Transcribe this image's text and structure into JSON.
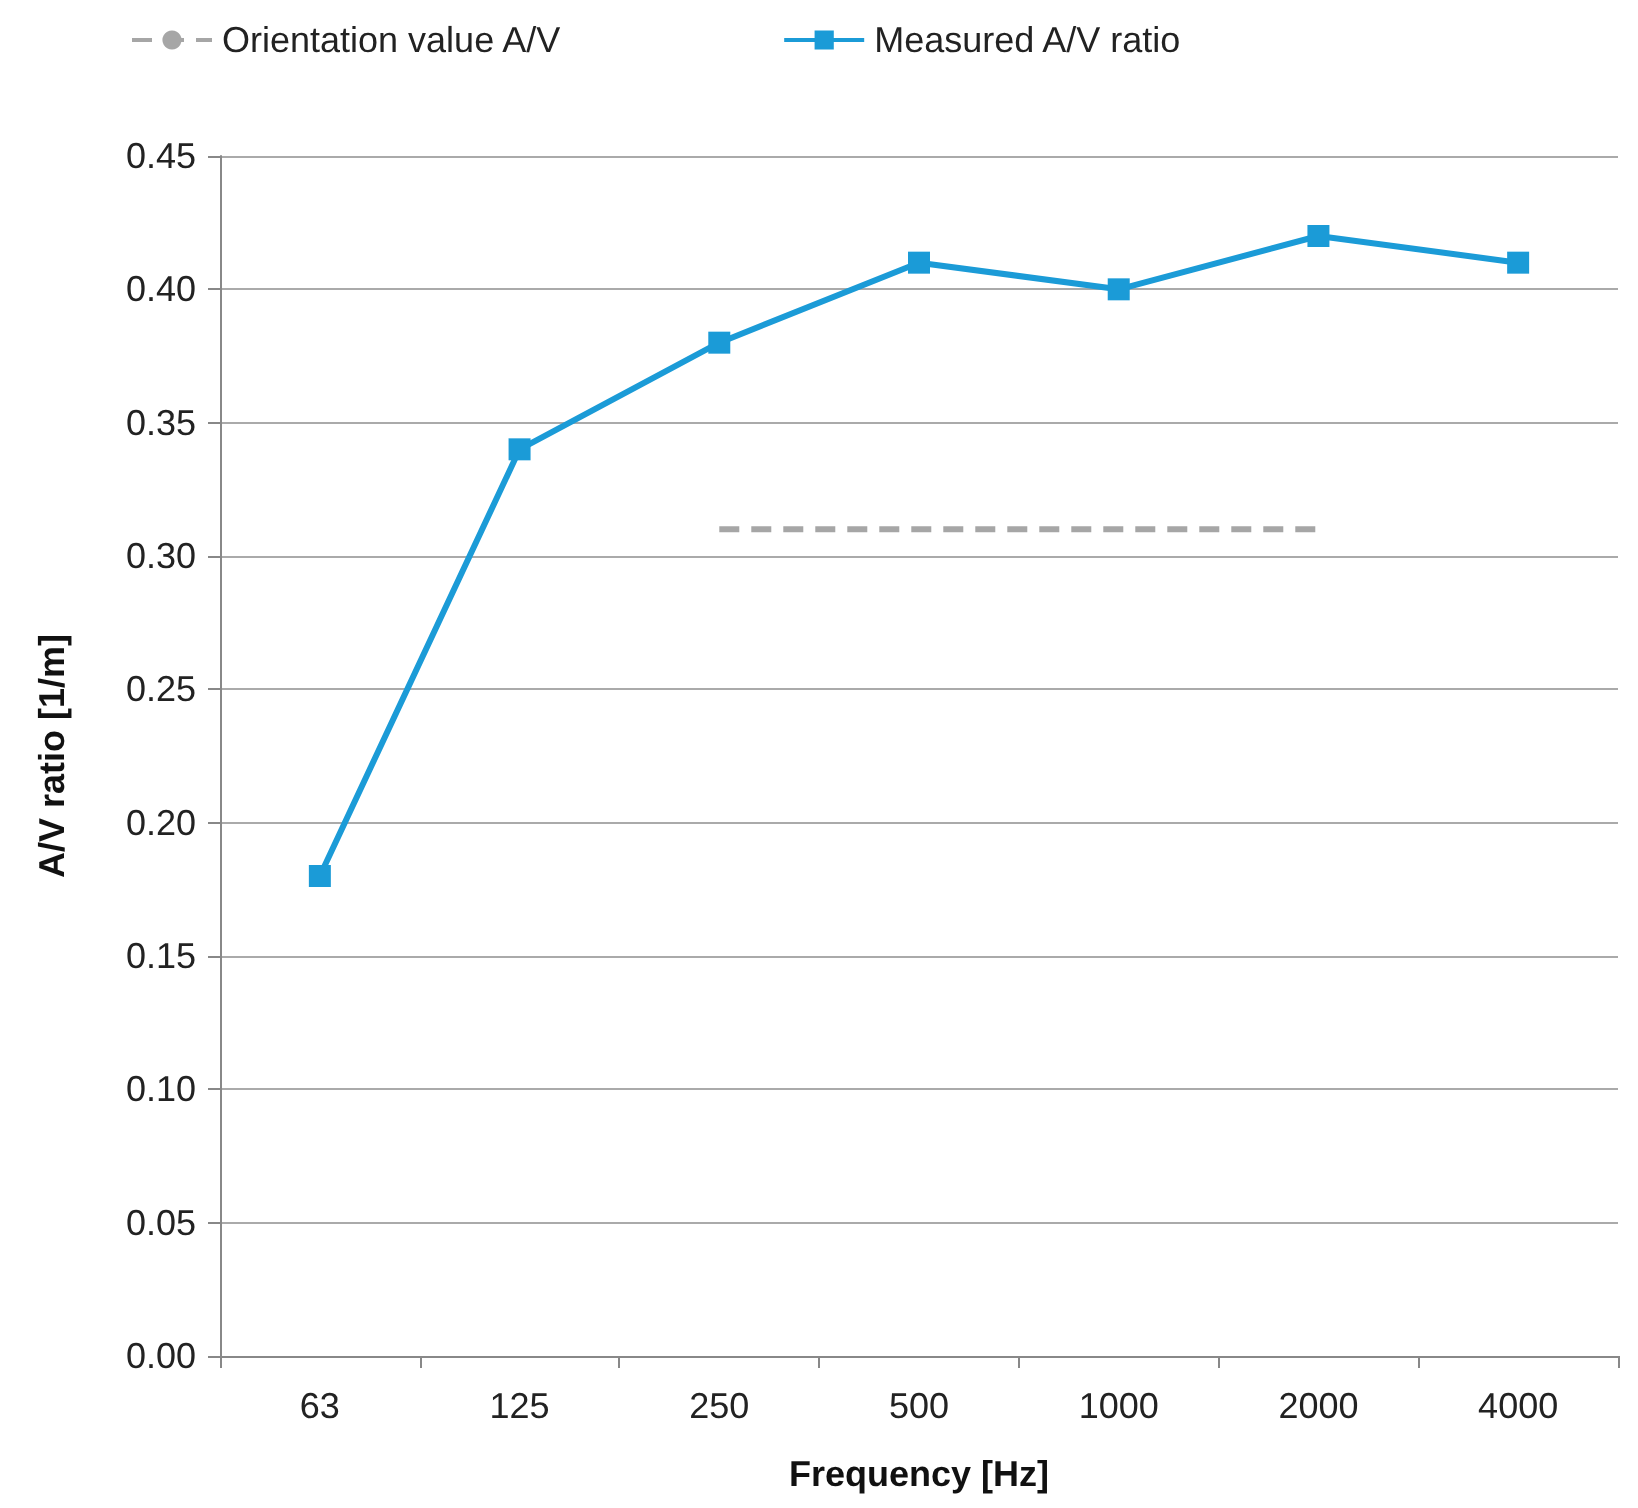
{
  "chart_data": {
    "type": "line",
    "xlabel": "Frequency [Hz]",
    "ylabel": "A/V ratio [1/m]",
    "categories": [
      "63",
      "125",
      "250",
      "500",
      "1000",
      "2000",
      "4000"
    ],
    "series": [
      {
        "name": "Orientation value A/V",
        "color": "#a6a6a6",
        "values": [
          null,
          null,
          0.31,
          0.31,
          0.31,
          0.31,
          null
        ],
        "marker": "none",
        "line_style": "dashed"
      },
      {
        "name": "Measured A/V ratio",
        "color": "#1b9bd7",
        "values": [
          0.18,
          0.34,
          0.38,
          0.41,
          0.4,
          0.42,
          0.41
        ],
        "marker": "square",
        "line_style": "solid"
      }
    ],
    "ylim": [
      0,
      0.45
    ],
    "yticks": [
      {
        "value": 0,
        "label": "0.00"
      },
      {
        "value": 0.05,
        "label": "0.05"
      },
      {
        "value": 0.1,
        "label": "0.10"
      },
      {
        "value": 0.15,
        "label": "0.15"
      },
      {
        "value": 0.2,
        "label": "0.20"
      },
      {
        "value": 0.25,
        "label": "0.25"
      },
      {
        "value": 0.3,
        "label": "0.30"
      },
      {
        "value": 0.35,
        "label": "0.35"
      },
      {
        "value": 0.4,
        "label": "0.40"
      },
      {
        "value": 0.45,
        "label": "0.45"
      }
    ],
    "grid": "y",
    "legend": "top"
  }
}
